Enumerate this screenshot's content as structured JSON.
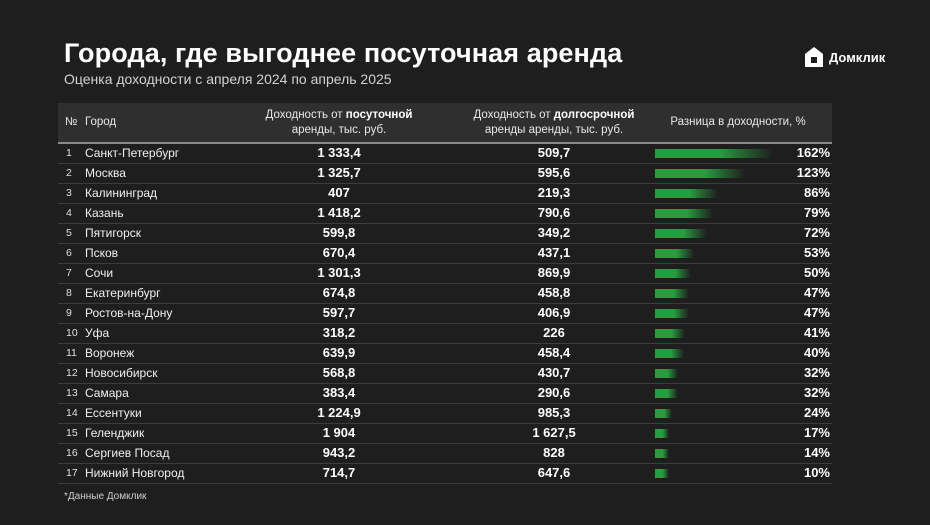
{
  "title": "Города, где выгоднее посуточная аренда",
  "subtitle": "Оценка доходности с апреля 2024 по апрель 2025",
  "logo": {
    "text": "Домклик"
  },
  "headers": {
    "no": "№",
    "city": "Город",
    "short_line1": "Доходность от посуточной",
    "short_line2": "аренды, тыс. руб.",
    "long_line1": "Доходность от долгосрочной",
    "long_line2": "аренды аренды, тыс. руб.",
    "diff": "Разница в доходности, %"
  },
  "footnote": "*Данные Домклик",
  "colors": {
    "background": "#1e1e1e",
    "header": "#2f2f2f",
    "bar": "#2a9b3f"
  },
  "chart_data": {
    "type": "table",
    "columns": [
      "№",
      "Город",
      "Доходность от посуточной аренды, тыс. руб.",
      "Доходность от долгосрочной аренды аренды, тыс. руб.",
      "Разница в доходности, %"
    ],
    "rows": [
      {
        "no": "1",
        "city": "Санкт-Петербург",
        "short": "1 333,4",
        "long": "509,7",
        "diff": 162,
        "diff_label": "162%"
      },
      {
        "no": "2",
        "city": "Москва",
        "short": "1 325,7",
        "long": "595,6",
        "diff": 123,
        "diff_label": "123%"
      },
      {
        "no": "3",
        "city": "Калининград",
        "short": "407",
        "long": "219,3",
        "diff": 86,
        "diff_label": "86%"
      },
      {
        "no": "4",
        "city": "Казань",
        "short": "1 418,2",
        "long": "790,6",
        "diff": 79,
        "diff_label": "79%"
      },
      {
        "no": "5",
        "city": "Пятигорск",
        "short": "599,8",
        "long": "349,2",
        "diff": 72,
        "diff_label": "72%"
      },
      {
        "no": "6",
        "city": "Псков",
        "short": "670,4",
        "long": "437,1",
        "diff": 53,
        "diff_label": "53%"
      },
      {
        "no": "7",
        "city": "Сочи",
        "short": "1 301,3",
        "long": "869,9",
        "diff": 50,
        "diff_label": "50%"
      },
      {
        "no": "8",
        "city": "Екатеринбург",
        "short": "674,8",
        "long": "458,8",
        "diff": 47,
        "diff_label": "47%"
      },
      {
        "no": "9",
        "city": "Ростов-на-Дону",
        "short": "597,7",
        "long": "406,9",
        "diff": 47,
        "diff_label": "47%"
      },
      {
        "no": "10",
        "city": "Уфа",
        "short": "318,2",
        "long": "226",
        "diff": 41,
        "diff_label": "41%"
      },
      {
        "no": "11",
        "city": "Воронеж",
        "short": "639,9",
        "long": "458,4",
        "diff": 40,
        "diff_label": "40%"
      },
      {
        "no": "12",
        "city": "Новосибирск",
        "short": "568,8",
        "long": "430,7",
        "diff": 32,
        "diff_label": "32%"
      },
      {
        "no": "13",
        "city": "Самара",
        "short": "383,4",
        "long": "290,6",
        "diff": 32,
        "diff_label": "32%"
      },
      {
        "no": "14",
        "city": "Ессентуки",
        "short": "1 224,9",
        "long": "985,3",
        "diff": 24,
        "diff_label": "24%"
      },
      {
        "no": "15",
        "city": "Геленджик",
        "short": "1 904",
        "long": "1 627,5",
        "diff": 17,
        "diff_label": "17%"
      },
      {
        "no": "16",
        "city": "Сергиев Посад",
        "short": "943,2",
        "long": "828",
        "diff": 14,
        "diff_label": "14%"
      },
      {
        "no": "17",
        "city": "Нижний Новгород",
        "short": "714,7",
        "long": "647,6",
        "diff": 10,
        "diff_label": "10%"
      }
    ]
  }
}
